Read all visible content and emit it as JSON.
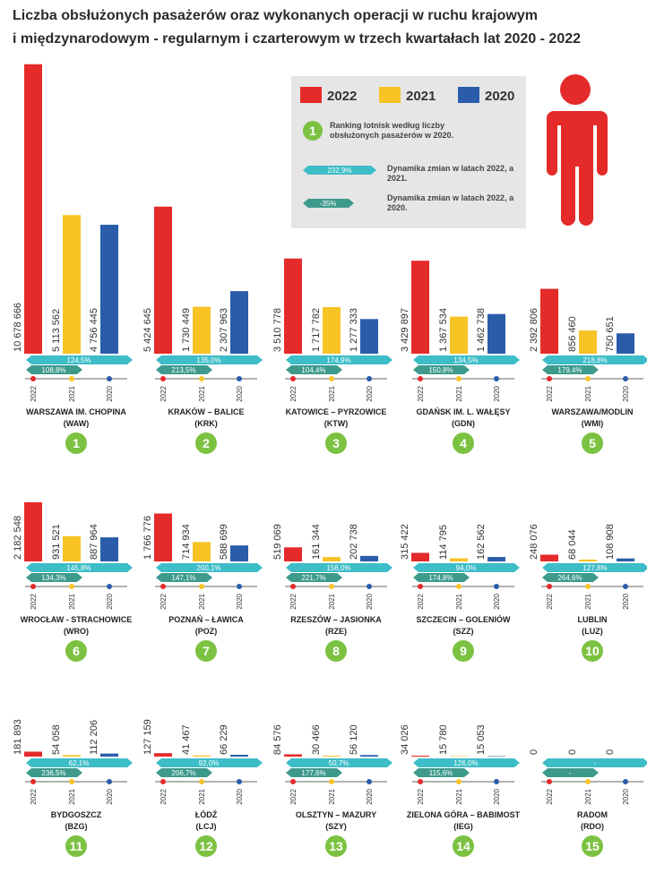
{
  "chart_data": {
    "type": "bar",
    "title_lines": [
      "Liczba obsłużonych pasażerów oraz wykonanych operacji w ruchu krajowym",
      "i międzynarodowym - regularnym i czarterowym w trzech kwartałach lat 2020 - 2022"
    ],
    "series": [
      {
        "name": "2022",
        "color": "#e52a2a"
      },
      {
        "name": "2021",
        "color": "#f7c325"
      },
      {
        "name": "2020",
        "color": "#2a5caa"
      }
    ],
    "ylim": [
      0,
      11000000
    ],
    "legend_notes": [
      {
        "marker": "1",
        "text": "Ranking lotnisk według liczby obsłużonych pasażerów w 2020."
      },
      {
        "marker": "232,9%",
        "text": "Dynamika zmian w latach 2022, a 2021."
      },
      {
        "marker": "-35%",
        "text": "Dynamika zmian w latach 2022, a 2020."
      }
    ],
    "airports": [
      {
        "name": "WARSZAWA IM. CHOPINA",
        "code": "(WAW)",
        "rank": 1,
        "values": [
          10678666,
          5113562,
          4756445
        ],
        "value_labels": [
          "10 678 666",
          "5 113 562",
          "4 756 445"
        ],
        "dynamics": [
          "124,5%",
          "108,8%"
        ]
      },
      {
        "name": "KRAKÓW – BALICE",
        "code": "(KRK)",
        "rank": 2,
        "values": [
          5424645,
          1730449,
          2307963
        ],
        "value_labels": [
          "5 424 645",
          "1 730 449",
          "2 307 963"
        ],
        "dynamics": [
          "135,0%",
          "213,5%"
        ]
      },
      {
        "name": "KATOWICE – PYRZOWICE",
        "code": "(KTW)",
        "rank": 3,
        "values": [
          3510778,
          1717782,
          1277333
        ],
        "value_labels": [
          "3 510 778",
          "1 717 782",
          "1 277 333"
        ],
        "dynamics": [
          "174,9%",
          "104,4%"
        ]
      },
      {
        "name": "GDAŃSK IM. L. WAŁĘSY",
        "code": "(GDN)",
        "rank": 4,
        "values": [
          3429897,
          1367534,
          1462738
        ],
        "value_labels": [
          "3 429 897",
          "1 367 534",
          "1 462 738"
        ],
        "dynamics": [
          "134,5%",
          "150,8%"
        ]
      },
      {
        "name": "WARSZAWA/MODLIN",
        "code": "(WMI)",
        "rank": 5,
        "values": [
          2392806,
          856460,
          750651
        ],
        "value_labels": [
          "2 392 806",
          "856 460",
          "750 651"
        ],
        "dynamics": [
          "218,8%",
          "179,4%"
        ]
      },
      {
        "name": "WROCŁAW - STRACHOWICE",
        "code": "(WRO)",
        "rank": 6,
        "values": [
          2182548,
          931521,
          887964
        ],
        "value_labels": [
          "2 182 548",
          "931 521",
          "887 964"
        ],
        "dynamics": [
          "145,8%",
          "134,3%"
        ]
      },
      {
        "name": "POZNAŃ – ŁAWICA",
        "code": "(POZ)",
        "rank": 7,
        "values": [
          1766776,
          714934,
          588699
        ],
        "value_labels": [
          "1 766 776",
          "714 934",
          "588 699"
        ],
        "dynamics": [
          "200,1%",
          "147,1%"
        ]
      },
      {
        "name": "RZESZÓW – JASIONKA",
        "code": "(RZE)",
        "rank": 8,
        "values": [
          519069,
          161344,
          202738
        ],
        "value_labels": [
          "519 069",
          "161 344",
          "202 738"
        ],
        "dynamics": [
          "156,0%",
          "221,7%"
        ]
      },
      {
        "name": "SZCZECIN – GOLENIÓW",
        "code": "(SZZ)",
        "rank": 9,
        "values": [
          315422,
          114795,
          162562
        ],
        "value_labels": [
          "315 422",
          "114 795",
          "162 562"
        ],
        "dynamics": [
          "94,0%",
          "174,8%"
        ]
      },
      {
        "name": "LUBLIN",
        "code": "(LUZ)",
        "rank": 10,
        "values": [
          248076,
          68044,
          108908
        ],
        "value_labels": [
          "248 076",
          "68 044",
          "108 908"
        ],
        "dynamics": [
          "127,8%",
          "264,6%"
        ]
      },
      {
        "name": "BYDGOSZCZ",
        "code": "(BZG)",
        "rank": 11,
        "values": [
          181893,
          54058,
          112206
        ],
        "value_labels": [
          "181 893",
          "54 058",
          "112 206"
        ],
        "dynamics": [
          "62,1%",
          "236,5%"
        ]
      },
      {
        "name": "ŁÓDŹ",
        "code": "(LCJ)",
        "rank": 12,
        "values": [
          127159,
          41467,
          66229
        ],
        "value_labels": [
          "127 159",
          "41 467",
          "66 229"
        ],
        "dynamics": [
          "92,0%",
          "206,7%"
        ]
      },
      {
        "name": "OLSZTYN – MAZURY",
        "code": "(SZY)",
        "rank": 13,
        "values": [
          84576,
          30466,
          56120
        ],
        "value_labels": [
          "84 576",
          "30 466",
          "56 120"
        ],
        "dynamics": [
          "50,7%",
          "177,6%"
        ]
      },
      {
        "name": "ZIELONA GÓRA – BABIMOST",
        "code": "(IEG)",
        "rank": 14,
        "values": [
          34026,
          15780,
          15053
        ],
        "value_labels": [
          "34 026",
          "15 780",
          "15 053"
        ],
        "dynamics": [
          "126,0%",
          "115,6%"
        ]
      },
      {
        "name": "RADOM",
        "code": "(RDO)",
        "rank": 15,
        "values": [
          0,
          0,
          0
        ],
        "value_labels": [
          "0",
          "0",
          "0"
        ],
        "dynamics": [
          "-",
          "-"
        ]
      }
    ]
  }
}
